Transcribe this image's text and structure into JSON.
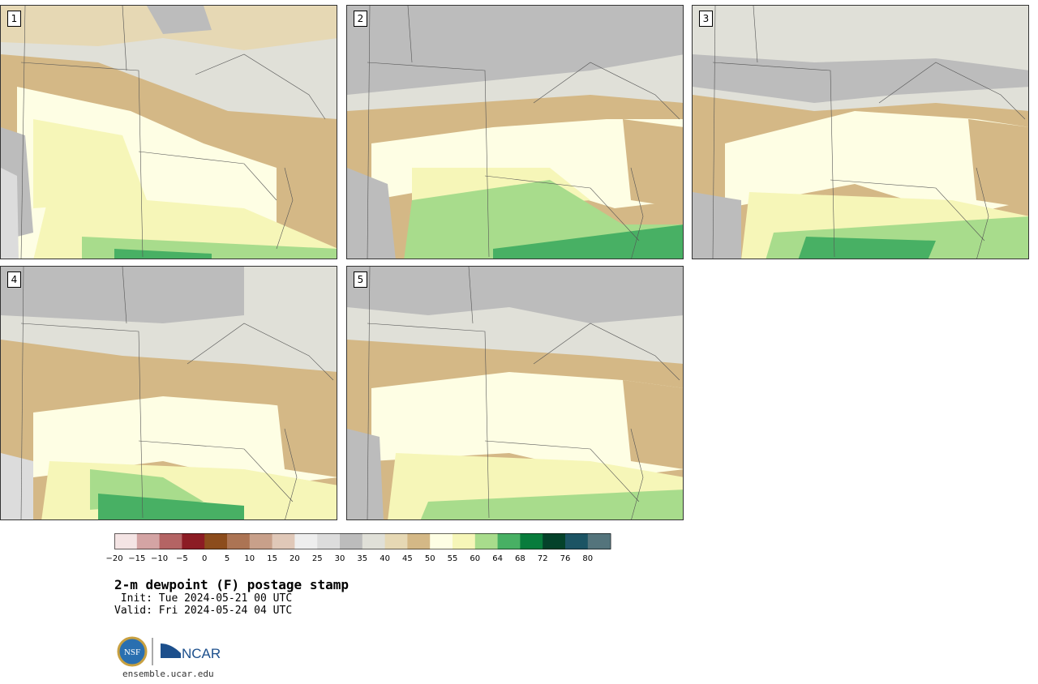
{
  "panels": [
    {
      "label": "1"
    },
    {
      "label": "2"
    },
    {
      "label": "3"
    },
    {
      "label": "4"
    },
    {
      "label": "5"
    }
  ],
  "colorbar": {
    "colors": [
      "#f4e4e4",
      "#d4a4a4",
      "#b46464",
      "#8c1c24",
      "#8c4c1c",
      "#ac7454",
      "#c8a08a",
      "#e0c8b8",
      "#eeeeee",
      "#dcdcdc",
      "#bcbcbc",
      "#e0e0d8",
      "#e6d8b4",
      "#d4b886",
      "#fefee4",
      "#f6f6b8",
      "#a8dc8c",
      "#48b064",
      "#087c3c",
      "#04422a",
      "#1c5464",
      "#54747c"
    ],
    "ticks": [
      "−20",
      "−15",
      "−10",
      "−5",
      "0",
      "5",
      "10",
      "15",
      "20",
      "25",
      "30",
      "35",
      "40",
      "45",
      "50",
      "55",
      "60",
      "64",
      "68",
      "72",
      "76",
      "80"
    ]
  },
  "title": "2-m dewpoint (F) postage stamp",
  "init_line": " Init: Tue 2024-05-21 00 UTC",
  "valid_line": "Valid: Fri 2024-05-24 04 UTC",
  "logos": {
    "nsf": "NSF",
    "ncar": "NCAR"
  },
  "site": "ensemble.ucar.edu"
}
